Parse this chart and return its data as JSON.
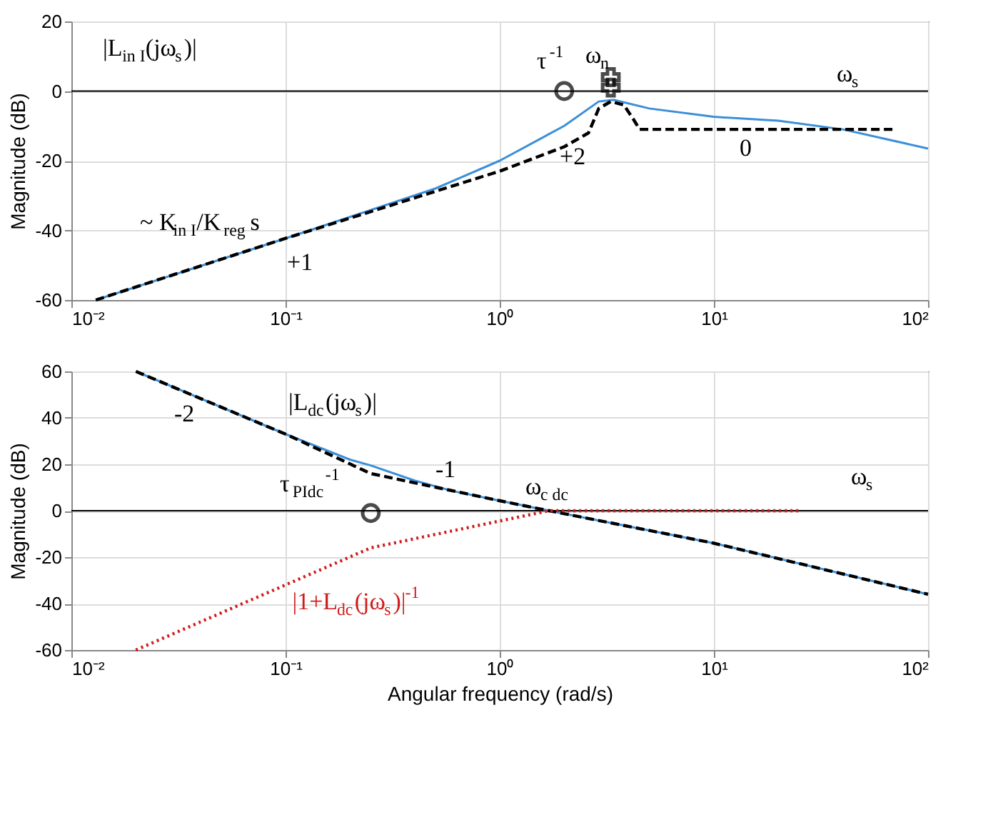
{
  "chart_data": [
    {
      "type": "line",
      "ylabel": "Magnitude (dB)",
      "xlim": [
        0.01,
        100
      ],
      "ylim": [
        -60,
        20
      ],
      "log": "x",
      "grid": true,
      "xticks": [
        {
          "value": 0.01,
          "label": "10⁻²"
        },
        {
          "value": 0.1,
          "label": "10⁻¹"
        },
        {
          "value": 1,
          "label": "10⁰"
        },
        {
          "value": 10,
          "label": "10¹"
        },
        {
          "value": 100,
          "label": "10²"
        }
      ],
      "yticks": [
        -60,
        -40,
        -20,
        0,
        20
      ],
      "series": [
        {
          "color": "#3b8fd9",
          "line_style": "solid",
          "marker": "none",
          "x": [
            0.013,
            0.1,
            0.5,
            1,
            2,
            2.9,
            3.4,
            5,
            10,
            20,
            40,
            100
          ],
          "values": [
            -60,
            -42.3,
            -28,
            -20,
            -10,
            -3,
            -2.5,
            -5,
            -7.4,
            -8.5,
            -11,
            -16.5
          ]
        },
        {
          "color": "#000000",
          "line_style": "dashed",
          "marker": "none",
          "x": [
            0.013,
            0.1,
            1,
            2,
            2.6,
            2.9,
            3.3,
            3.8,
            4.2,
            4.5,
            70
          ],
          "values": [
            -60,
            -42.3,
            -23,
            -16,
            -12,
            -5,
            -3,
            -4,
            -8,
            -11,
            -11
          ]
        },
        {
          "type": "scatter",
          "color": "#000000",
          "marker": "circle",
          "x": [
            2
          ],
          "values": [
            0
          ]
        },
        {
          "type": "scatter",
          "color": "#000000",
          "marker": "cross",
          "x": [
            3.3,
            3.3
          ],
          "values": [
            1,
            4
          ]
        }
      ],
      "ref_lines": [
        {
          "axis": "y",
          "value": 0,
          "color": "#000000",
          "line_style": "solid"
        }
      ],
      "annotations": [
        "|L$_{in I}$(jω$_{s}$)|",
        "τ$^{-1}$",
        "ω$_{n}$",
        "ω$_{s}$",
        "+2",
        "0",
        "+1",
        "~ K$_{in I}$/K$_{reg}$ s"
      ]
    },
    {
      "type": "line",
      "xlabel": "Angular frequency (rad/s)",
      "ylabel": "Magnitude (dB)",
      "xlim": [
        0.01,
        100
      ],
      "ylim": [
        -60,
        60
      ],
      "log": "x",
      "grid": true,
      "xticks": [
        {
          "value": 0.01,
          "label": "10⁻²"
        },
        {
          "value": 0.1,
          "label": "10⁻¹"
        },
        {
          "value": 1,
          "label": "10⁰"
        },
        {
          "value": 10,
          "label": "10¹"
        },
        {
          "value": 100,
          "label": "10²"
        }
      ],
      "yticks": [
        -60,
        -40,
        -20,
        0,
        20,
        40,
        60
      ],
      "series": [
        {
          "color": "#3b8fd9",
          "line_style": "solid",
          "marker": "none",
          "x": [
            0.02,
            0.1,
            0.2,
            0.25,
            0.4,
            0.6,
            1,
            1.7,
            10,
            100
          ],
          "values": [
            60,
            33,
            22,
            19.5,
            13,
            8.5,
            4.3,
            0,
            -14,
            -36
          ]
        },
        {
          "color": "#000000",
          "line_style": "dashed",
          "marker": "none",
          "x": [
            0.02,
            0.1,
            0.25,
            1,
            1.7,
            10,
            100
          ],
          "values": [
            60,
            33,
            16,
            4.3,
            0,
            -14,
            -36
          ]
        },
        {
          "name": "|1+L$_{dc}$(jω$_{s}$)|$^{-1}$",
          "color": "#d01c1c",
          "line_style": "dotted",
          "marker": "none",
          "x": [
            0.02,
            0.25,
            1.7,
            25
          ],
          "values": [
            -60,
            -16,
            0,
            0
          ]
        },
        {
          "type": "scatter",
          "color": "#000000",
          "marker": "circle",
          "x": [
            0.25
          ],
          "values": [
            -1
          ]
        }
      ],
      "ref_lines": [
        {
          "axis": "y",
          "value": 0,
          "color": "#000000",
          "line_style": "solid"
        }
      ],
      "annotations": [
        "|L$_{dc}$(jω$_{s}$)|",
        "-2",
        "-1",
        "τ$_{PIdc}$$^{-1}$",
        "ω$_{c dc}$",
        "ω$_{s}$"
      ]
    }
  ]
}
